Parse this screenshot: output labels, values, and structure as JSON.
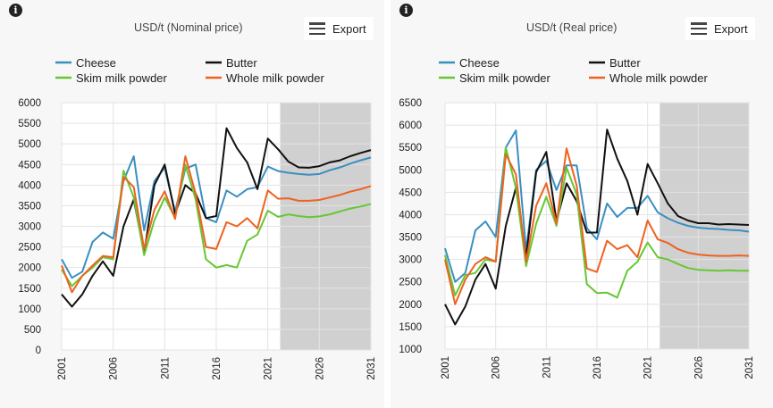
{
  "info_icon": "info-circle-icon",
  "export_label": "Export",
  "export_icon": "hamburger-menu-icon",
  "chart_data": [
    {
      "type": "line",
      "title": "USD/t (Nominal price)",
      "x": [
        2001,
        2002,
        2003,
        2004,
        2005,
        2006,
        2007,
        2008,
        2009,
        2010,
        2011,
        2012,
        2013,
        2014,
        2015,
        2016,
        2017,
        2018,
        2019,
        2020,
        2021,
        2022,
        2023,
        2024,
        2025,
        2026,
        2027,
        2028,
        2029,
        2030,
        2031
      ],
      "xticks": [
        2001,
        2006,
        2011,
        2016,
        2021,
        2026,
        2031
      ],
      "ylim": [
        0,
        6000
      ],
      "yticks": [
        0,
        500,
        1000,
        1500,
        2000,
        2500,
        3000,
        3500,
        4000,
        4500,
        5000,
        5500,
        6000
      ],
      "projection_start": 2022.2,
      "projection_end": 2031,
      "legend": [
        "Cheese",
        "Butter",
        "Skim milk powder",
        "Whole milk powder"
      ],
      "series": [
        {
          "name": "Cheese",
          "color": "#3a8fc0",
          "values": [
            2200,
            1750,
            1900,
            2620,
            2850,
            2700,
            4100,
            4700,
            2900,
            4100,
            4420,
            3350,
            4400,
            4500,
            3200,
            3100,
            3870,
            3720,
            3900,
            3950,
            4450,
            4340,
            4300,
            4270,
            4250,
            4270,
            4360,
            4430,
            4520,
            4600,
            4670
          ]
        },
        {
          "name": "Butter",
          "color": "#111111",
          "values": [
            1350,
            1050,
            1350,
            1800,
            2150,
            1800,
            3000,
            3650,
            2350,
            4000,
            4500,
            3300,
            4000,
            3800,
            3200,
            3250,
            5380,
            4900,
            4550,
            3900,
            5130,
            4870,
            4570,
            4430,
            4420,
            4460,
            4550,
            4600,
            4700,
            4780,
            4850
          ]
        },
        {
          "name": "Skim milk powder",
          "color": "#66c733",
          "values": [
            1950,
            1550,
            1800,
            2000,
            2250,
            2200,
            4350,
            3700,
            2300,
            3150,
            3700,
            3200,
            4500,
            3650,
            2200,
            2000,
            2060,
            2000,
            2650,
            2800,
            3380,
            3230,
            3290,
            3250,
            3220,
            3240,
            3290,
            3360,
            3430,
            3480,
            3540
          ]
        },
        {
          "name": "Whole milk powder",
          "color": "#ee6220",
          "values": [
            2050,
            1400,
            1800,
            2050,
            2280,
            2250,
            4200,
            3950,
            2450,
            3400,
            3850,
            3180,
            4700,
            3800,
            2500,
            2450,
            3100,
            3000,
            3200,
            2950,
            3870,
            3670,
            3680,
            3620,
            3620,
            3640,
            3700,
            3760,
            3840,
            3900,
            3980
          ]
        }
      ]
    },
    {
      "type": "line",
      "title": "USD/t (Real price)",
      "x": [
        2001,
        2002,
        2003,
        2004,
        2005,
        2006,
        2007,
        2008,
        2009,
        2010,
        2011,
        2012,
        2013,
        2014,
        2015,
        2016,
        2017,
        2018,
        2019,
        2020,
        2021,
        2022,
        2023,
        2024,
        2025,
        2026,
        2027,
        2028,
        2029,
        2030,
        2031
      ],
      "xticks": [
        2001,
        2006,
        2011,
        2016,
        2021,
        2026,
        2031
      ],
      "ylim": [
        1000,
        6500
      ],
      "yticks": [
        1000,
        1500,
        2000,
        2500,
        3000,
        3500,
        4000,
        4500,
        5000,
        5500,
        6000,
        6500
      ],
      "projection_start": 2022.2,
      "projection_end": 2031,
      "legend": [
        "Cheese",
        "Butter",
        "Skim milk powder",
        "Whole milk powder"
      ],
      "series": [
        {
          "name": "Cheese",
          "color": "#3a8fc0",
          "values": [
            3250,
            2500,
            2700,
            3650,
            3850,
            3500,
            5500,
            5880,
            3200,
            5000,
            5200,
            4550,
            5100,
            5100,
            3700,
            3450,
            4250,
            3950,
            4150,
            4150,
            4420,
            4050,
            3920,
            3820,
            3750,
            3710,
            3690,
            3680,
            3660,
            3650,
            3620
          ]
        },
        {
          "name": "Butter",
          "color": "#111111",
          "values": [
            2000,
            1550,
            1950,
            2550,
            2900,
            2350,
            3750,
            4600,
            3050,
            4950,
            5400,
            3850,
            4700,
            4300,
            3600,
            3600,
            5900,
            5250,
            4750,
            4000,
            5130,
            4700,
            4250,
            3970,
            3870,
            3810,
            3810,
            3780,
            3790,
            3780,
            3770
          ]
        },
        {
          "name": "Skim milk powder",
          "color": "#66c733",
          "values": [
            3100,
            2200,
            2650,
            2700,
            3000,
            2950,
            5500,
            4600,
            2850,
            3800,
            4400,
            3750,
            5050,
            4450,
            2450,
            2250,
            2260,
            2150,
            2750,
            2950,
            3380,
            3050,
            3000,
            2900,
            2810,
            2770,
            2760,
            2750,
            2760,
            2750,
            2750
          ]
        },
        {
          "name": "Whole milk powder",
          "color": "#ee6220",
          "values": [
            3000,
            2000,
            2550,
            2900,
            3050,
            2950,
            5350,
            4900,
            2950,
            4200,
            4700,
            3800,
            5480,
            4650,
            2800,
            2720,
            3420,
            3230,
            3320,
            3050,
            3870,
            3450,
            3370,
            3230,
            3150,
            3110,
            3090,
            3080,
            3080,
            3090,
            3080
          ]
        }
      ]
    }
  ]
}
